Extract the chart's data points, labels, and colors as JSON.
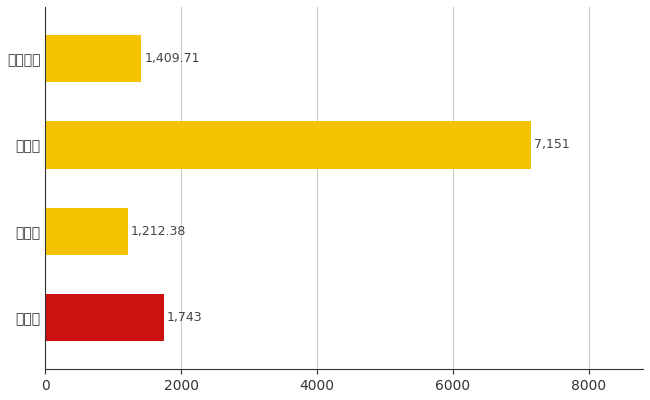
{
  "categories": [
    "佐野市",
    "県平均",
    "県最大",
    "全国平均"
  ],
  "values": [
    1743,
    1212.38,
    7151,
    1409.71
  ],
  "bar_colors": [
    "#cc1111",
    "#f5c200",
    "#f5c200",
    "#f5c200"
  ],
  "bar_labels": [
    "1,743",
    "1,212.38",
    "7,151",
    "1,409.71"
  ],
  "xlim": [
    0,
    8800
  ],
  "xticks": [
    0,
    2000,
    4000,
    6000,
    8000
  ],
  "xtick_labels": [
    "0",
    "2000",
    "4000",
    "6000",
    "8000"
  ],
  "grid_color": "#cccccc",
  "background_color": "#ffffff",
  "label_fontsize": 10,
  "tick_fontsize": 10,
  "bar_height": 0.55
}
